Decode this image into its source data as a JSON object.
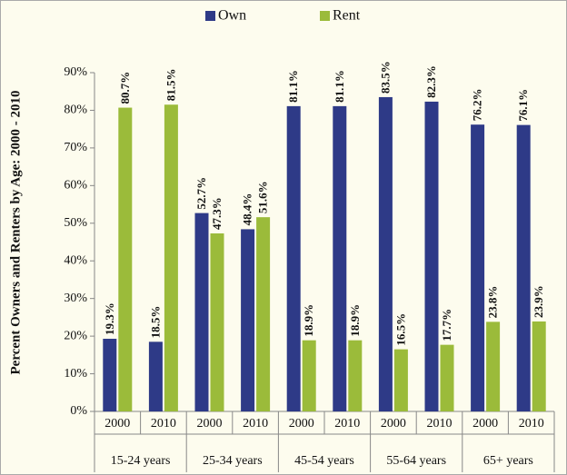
{
  "chart_data": {
    "type": "bar",
    "y_label": "Percent Owners and Renters by Age: 2000 - 2010",
    "categories": [
      "2000",
      "2010",
      "2000",
      "2010",
      "2000",
      "2010",
      "2000",
      "2010",
      "2000",
      "2010"
    ],
    "groups": [
      "15-24 years",
      "25-34 years",
      "45-54 years",
      "55-64 years",
      "65+ years"
    ],
    "series": [
      {
        "name": "Own",
        "color": "#2e3a87",
        "values": [
          19.3,
          18.5,
          52.7,
          48.4,
          81.1,
          81.1,
          83.5,
          82.3,
          76.2,
          76.1
        ],
        "value_labels": [
          "19.3%",
          "18.5%",
          "52.7%",
          "48.4%",
          "81.1%",
          "81.1%",
          "83.5%",
          "82.3%",
          "76.2%",
          "76.1%"
        ]
      },
      {
        "name": "Rent",
        "color": "#9bbb3a",
        "values": [
          80.7,
          81.5,
          47.3,
          51.6,
          18.9,
          18.9,
          16.5,
          17.7,
          23.8,
          23.9
        ],
        "value_labels": [
          "80.7%",
          "81.5%",
          "47.3%",
          "51.6%",
          "18.9%",
          "18.9%",
          "16.5%",
          "17.7%",
          "23.8%",
          "23.9%"
        ]
      }
    ],
    "ylim": [
      0,
      90
    ],
    "yticks": [
      {
        "value": 0,
        "label": "0%"
      },
      {
        "value": 10,
        "label": "10%"
      },
      {
        "value": 20,
        "label": "20%"
      },
      {
        "value": 30,
        "label": "30%"
      },
      {
        "value": 40,
        "label": "40%"
      },
      {
        "value": 50,
        "label": "50%"
      },
      {
        "value": 60,
        "label": "60%"
      },
      {
        "value": 70,
        "label": "70%"
      },
      {
        "value": 80,
        "label": "80%"
      },
      {
        "value": 90,
        "label": "90%"
      }
    ],
    "legend": "top"
  }
}
